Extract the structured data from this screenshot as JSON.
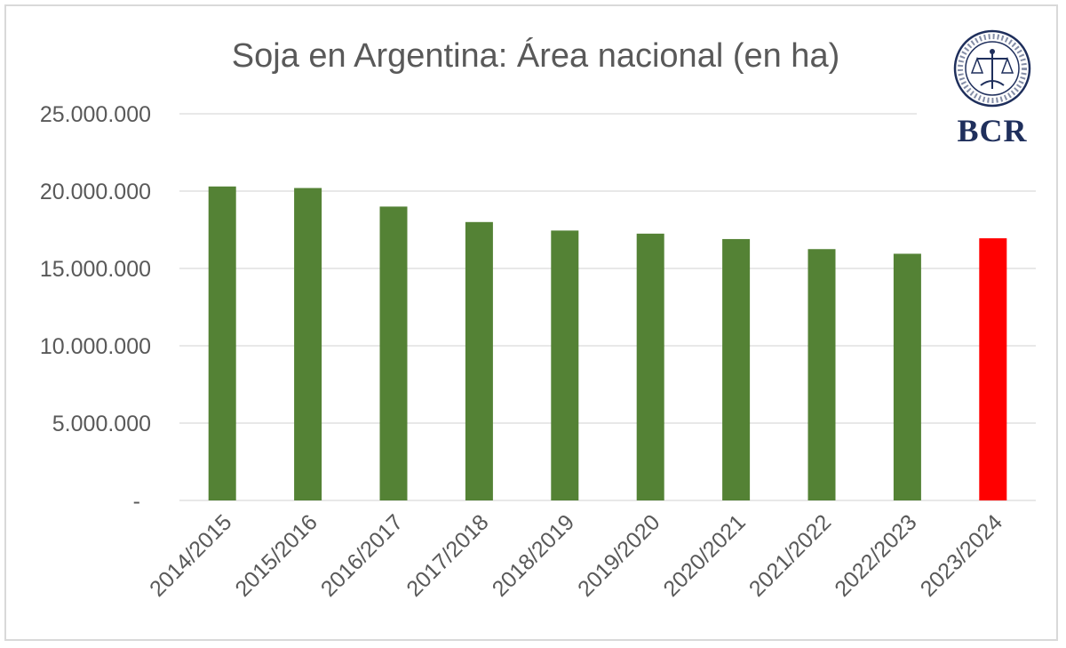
{
  "chart_data": {
    "type": "bar",
    "title": "Soja en Argentina: Área nacional (en ha)",
    "categories": [
      "2014/2015",
      "2015/2016",
      "2016/2017",
      "2017/2018",
      "2018/2019",
      "2019/2020",
      "2020/2021",
      "2021/2022",
      "2022/2023",
      "2023/2024"
    ],
    "values": [
      20300000,
      20200000,
      19000000,
      18000000,
      17450000,
      17250000,
      16900000,
      16250000,
      15950000,
      16950000
    ],
    "ylim": [
      0,
      25000000
    ],
    "yticks": [
      0,
      5000000,
      10000000,
      15000000,
      20000000,
      25000000
    ],
    "ytick_labels": [
      "-",
      "5.000.000",
      "10.000.000",
      "15.000.000",
      "20.000.000",
      "25.000.000"
    ],
    "grid": true,
    "colors": {
      "default": "#548235",
      "highlight": "#ff0000",
      "grid": "#d9d9d9",
      "text": "#595959"
    },
    "highlight_index": 9
  },
  "logo": {
    "text": "BCR",
    "color": "#1f2f5c"
  }
}
